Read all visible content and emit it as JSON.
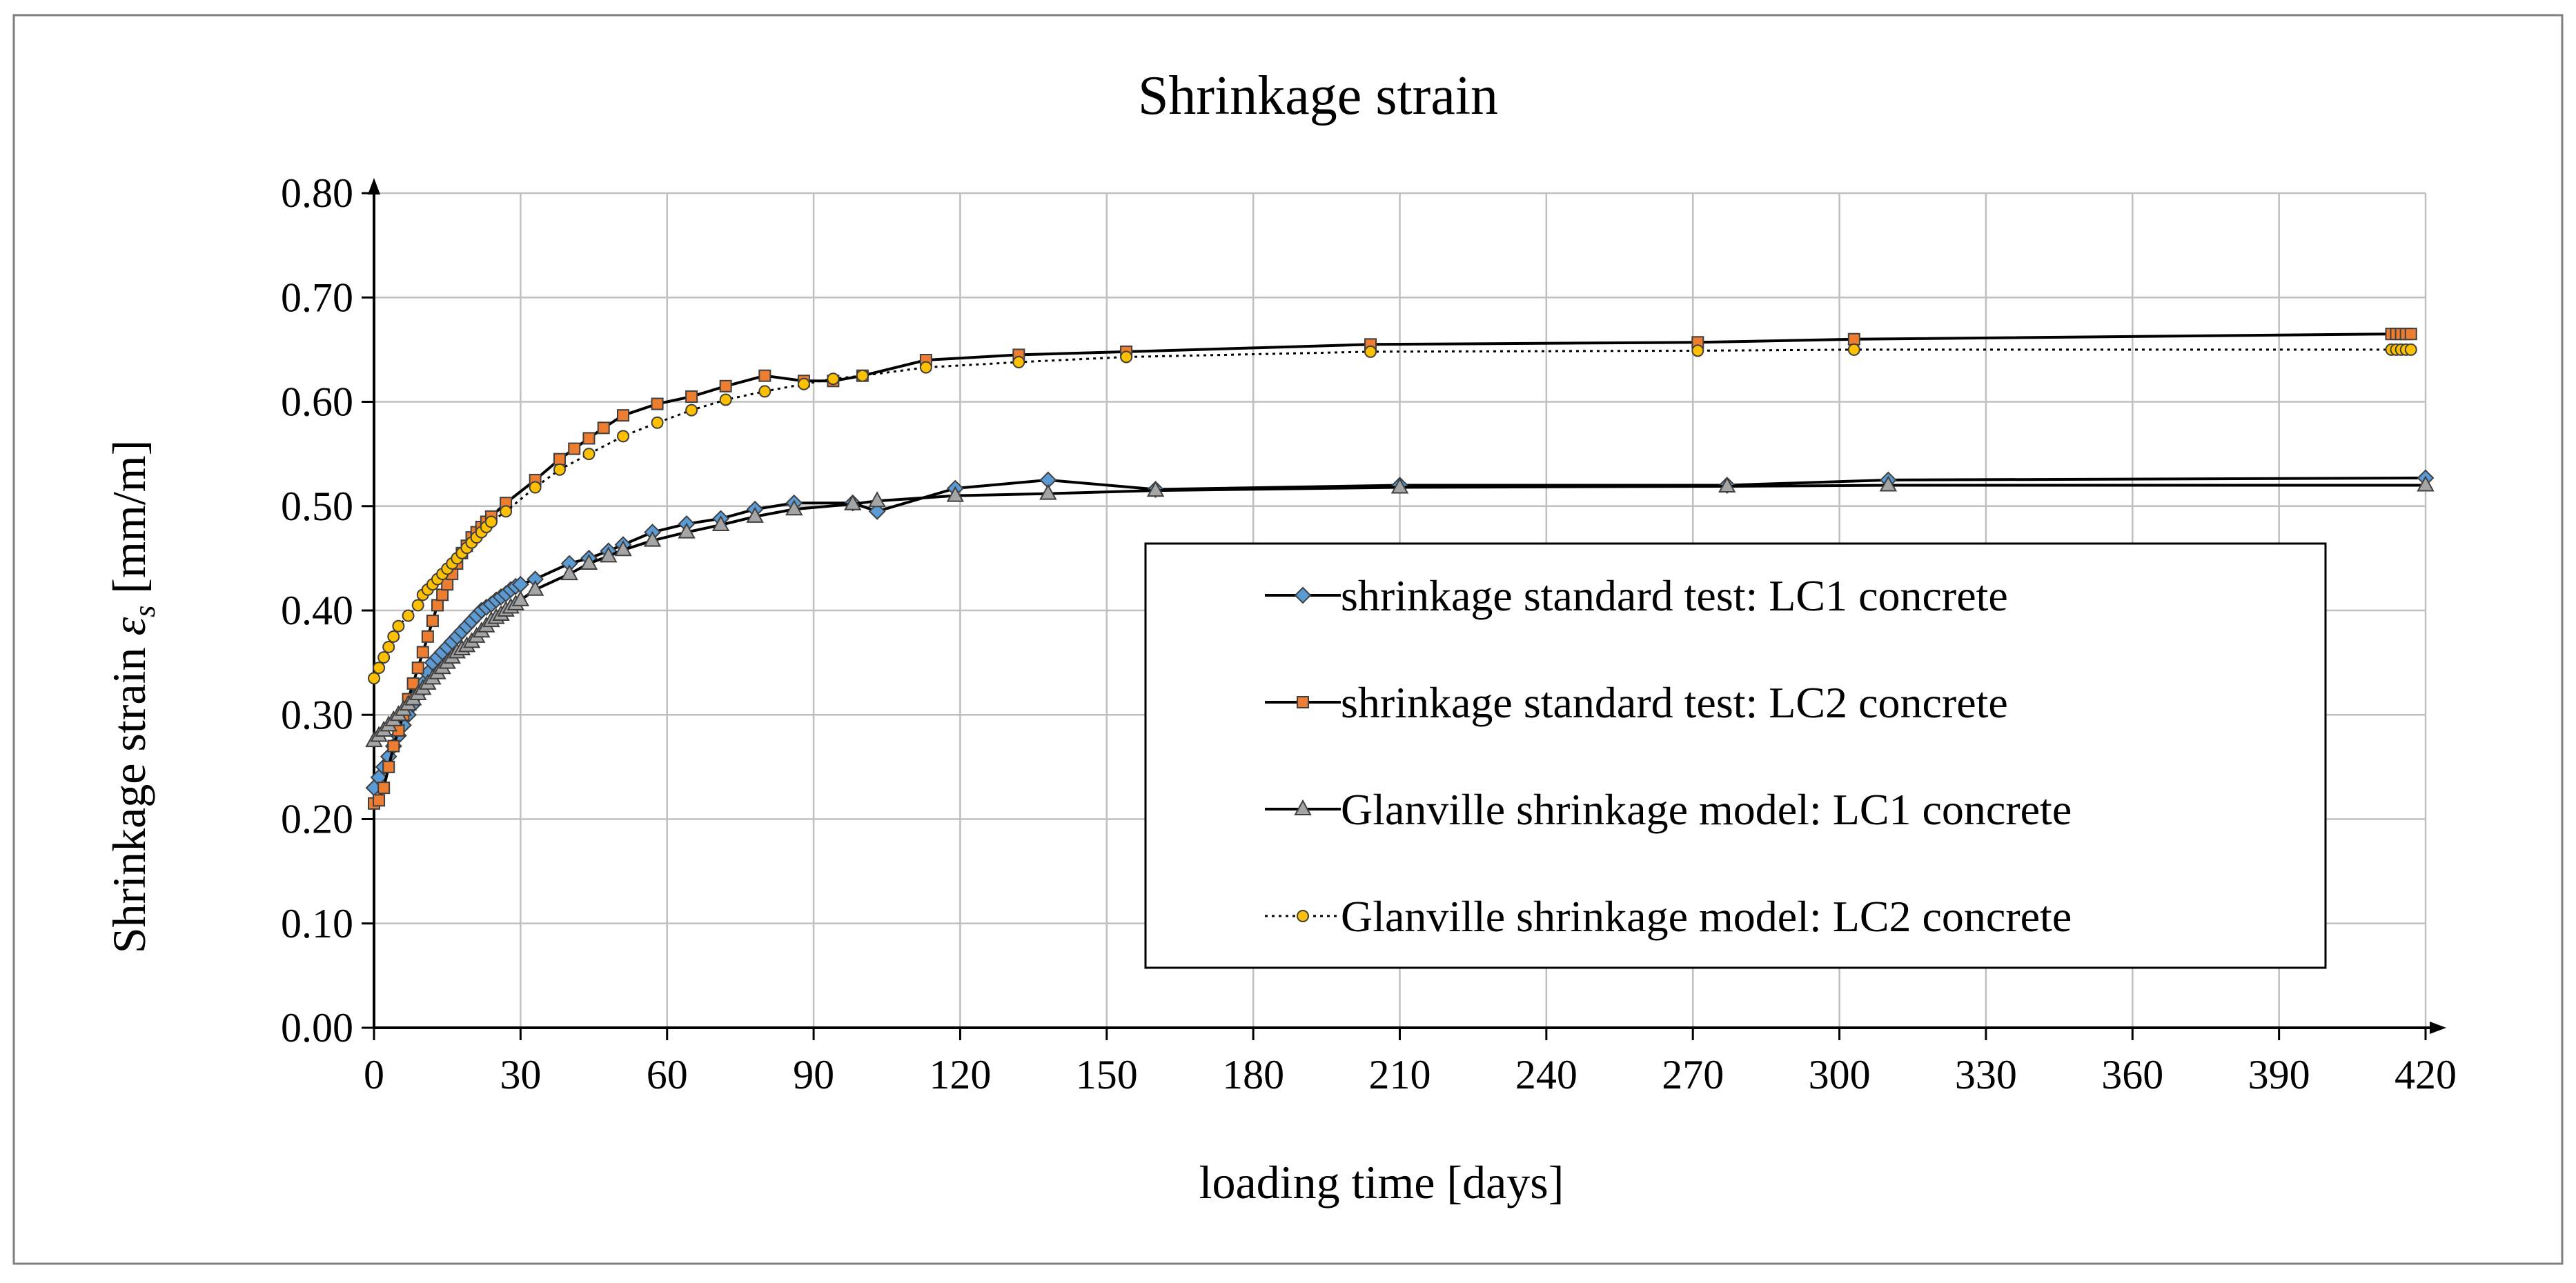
{
  "chart_data": {
    "type": "line",
    "title": "Shrinkage strain",
    "xlabel": "loading time [days]",
    "ylabel_prefix": "Shrinkage strain ",
    "ylabel_symbol": "ε",
    "ylabel_subscript": "s",
    "ylabel_suffix": " [mm/m]",
    "xlim": [
      0,
      420
    ],
    "ylim": [
      0,
      0.8
    ],
    "x_ticks": [
      0,
      30,
      60,
      90,
      120,
      150,
      180,
      210,
      240,
      270,
      300,
      330,
      360,
      390,
      420
    ],
    "x_tick_labels": [
      "0",
      "30",
      "60",
      "90",
      "120",
      "150",
      "180",
      "210",
      "240",
      "270",
      "300",
      "330",
      "360",
      "390",
      "420"
    ],
    "y_ticks": [
      0,
      0.1,
      0.2,
      0.3,
      0.4,
      0.5,
      0.6,
      0.7,
      0.8
    ],
    "y_tick_labels": [
      "0.00",
      "0.10",
      "0.20",
      "0.30",
      "0.40",
      "0.50",
      "0.60",
      "0.70",
      "0.80"
    ],
    "grid": true,
    "legend_position": "center-right",
    "series": [
      {
        "name": "shrinkage standard test: LC1 concrete",
        "marker": "diamond",
        "marker_color": "#5b9bd5",
        "line_style": "solid",
        "x": [
          0,
          1,
          2,
          3,
          4,
          5,
          6,
          7,
          8,
          9,
          10,
          11,
          12,
          13,
          14,
          15,
          16,
          17,
          18,
          19,
          20,
          21,
          22,
          23,
          24,
          25,
          26,
          27,
          28,
          29,
          30,
          33,
          40,
          44,
          48,
          51,
          57,
          64,
          71,
          78,
          86,
          98,
          103,
          119,
          138,
          160,
          210,
          277,
          310,
          420
        ],
        "y": [
          0.23,
          0.24,
          0.25,
          0.26,
          0.27,
          0.28,
          0.29,
          0.3,
          0.31,
          0.32,
          0.33,
          0.34,
          0.35,
          0.355,
          0.36,
          0.365,
          0.37,
          0.375,
          0.38,
          0.385,
          0.39,
          0.395,
          0.4,
          0.403,
          0.406,
          0.41,
          0.413,
          0.416,
          0.42,
          0.423,
          0.425,
          0.43,
          0.445,
          0.45,
          0.457,
          0.463,
          0.475,
          0.483,
          0.488,
          0.497,
          0.503,
          0.503,
          0.495,
          0.517,
          0.525,
          0.516,
          0.52,
          0.52,
          0.525,
          0.527
        ]
      },
      {
        "name": "shrinkage standard test: LC2 concrete",
        "marker": "square",
        "marker_color": "#ed7d31",
        "line_style": "solid",
        "x": [
          0,
          1,
          2,
          3,
          4,
          5,
          6,
          7,
          8,
          9,
          10,
          11,
          12,
          13,
          14,
          15,
          16,
          17,
          18,
          19,
          20,
          21,
          22,
          23,
          24,
          27,
          33,
          38,
          41,
          44,
          47,
          51,
          58,
          65,
          72,
          80,
          88,
          94,
          100,
          113,
          132,
          154,
          204,
          271,
          303,
          413,
          414,
          415,
          416,
          417
        ],
        "y": [
          0.215,
          0.218,
          0.23,
          0.25,
          0.27,
          0.285,
          0.3,
          0.315,
          0.33,
          0.345,
          0.36,
          0.375,
          0.39,
          0.405,
          0.415,
          0.425,
          0.435,
          0.445,
          0.455,
          0.462,
          0.47,
          0.475,
          0.48,
          0.485,
          0.49,
          0.503,
          0.525,
          0.545,
          0.555,
          0.565,
          0.575,
          0.587,
          0.598,
          0.605,
          0.615,
          0.625,
          0.62,
          0.62,
          0.625,
          0.64,
          0.645,
          0.648,
          0.655,
          0.657,
          0.66,
          0.665,
          0.665,
          0.665,
          0.665,
          0.665
        ]
      },
      {
        "name": "Glanville shrinkage model: LC1 concrete",
        "marker": "triangle",
        "marker_color": "#a5a5a5",
        "line_style": "solid",
        "x": [
          0,
          1,
          2,
          3,
          4,
          5,
          6,
          7,
          8,
          9,
          10,
          11,
          12,
          13,
          14,
          15,
          16,
          17,
          18,
          19,
          20,
          21,
          22,
          23,
          24,
          25,
          26,
          27,
          28,
          29,
          30,
          33,
          40,
          44,
          48,
          51,
          57,
          64,
          71,
          78,
          86,
          98,
          103,
          119,
          138,
          160,
          210,
          277,
          310,
          420
        ],
        "y": [
          0.275,
          0.28,
          0.285,
          0.29,
          0.295,
          0.3,
          0.305,
          0.31,
          0.315,
          0.32,
          0.325,
          0.33,
          0.335,
          0.34,
          0.345,
          0.35,
          0.355,
          0.36,
          0.363,
          0.366,
          0.37,
          0.375,
          0.38,
          0.385,
          0.39,
          0.393,
          0.396,
          0.4,
          0.403,
          0.406,
          0.41,
          0.42,
          0.435,
          0.445,
          0.452,
          0.458,
          0.467,
          0.475,
          0.482,
          0.49,
          0.497,
          0.502,
          0.505,
          0.51,
          0.512,
          0.515,
          0.518,
          0.519,
          0.52,
          0.52
        ]
      },
      {
        "name": "Glanville shrinkage model: LC2 concrete",
        "marker": "circle",
        "marker_color": "#ffc000",
        "line_style": "dotted",
        "x": [
          0,
          1,
          2,
          3,
          4,
          5,
          7,
          9,
          10,
          11,
          12,
          13,
          14,
          15,
          16,
          17,
          18,
          19,
          20,
          21,
          22,
          23,
          24,
          27,
          33,
          38,
          44,
          51,
          58,
          65,
          72,
          80,
          88,
          94,
          100,
          113,
          132,
          154,
          204,
          271,
          303,
          413,
          414,
          415,
          416,
          417
        ],
        "y": [
          0.335,
          0.345,
          0.355,
          0.365,
          0.375,
          0.385,
          0.395,
          0.405,
          0.415,
          0.42,
          0.425,
          0.43,
          0.435,
          0.44,
          0.445,
          0.45,
          0.455,
          0.46,
          0.465,
          0.47,
          0.475,
          0.48,
          0.485,
          0.495,
          0.518,
          0.535,
          0.55,
          0.567,
          0.58,
          0.592,
          0.602,
          0.61,
          0.617,
          0.622,
          0.625,
          0.633,
          0.638,
          0.643,
          0.648,
          0.649,
          0.65,
          0.65,
          0.65,
          0.65,
          0.65,
          0.65
        ]
      }
    ]
  }
}
